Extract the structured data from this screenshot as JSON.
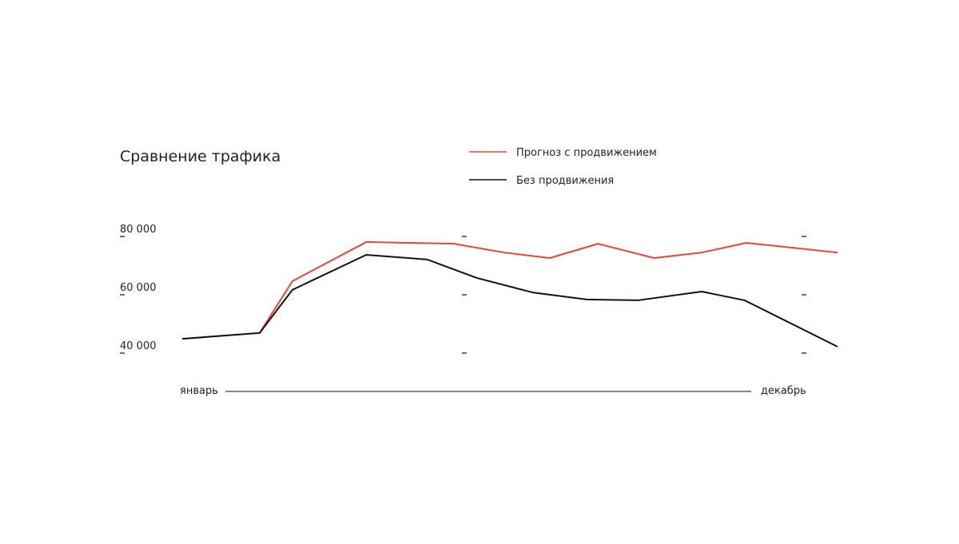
{
  "chart_data": {
    "type": "line",
    "title": "Сравнение трафика",
    "series": [
      {
        "name": "Прогноз с продвижением",
        "color": "#e8453c",
        "x": [
          0,
          1.3,
          1.85,
          3.09,
          4.56,
          5.4,
          6.17,
          6.98,
          7.92,
          8.72,
          9.47,
          11
        ],
        "values": [
          44900,
          46900,
          64700,
          78100,
          77500,
          74500,
          72600,
          77500,
          72600,
          74500,
          77800,
          74500
        ]
      },
      {
        "name": "Без продвижения",
        "color": "#111111",
        "x": [
          0,
          1.3,
          1.85,
          3.09,
          4.11,
          4.94,
          5.88,
          6.79,
          7.65,
          8.72,
          9.44,
          11
        ],
        "values": [
          44900,
          46900,
          61700,
          73700,
          72100,
          65800,
          60800,
          58400,
          58100,
          61100,
          58100,
          42200
        ]
      }
    ],
    "xlim": [
      0,
      11
    ],
    "ylim": [
      40000,
      80000
    ],
    "yticks": [
      {
        "value": 80000,
        "label": "80 000"
      },
      {
        "value": 60000,
        "label": "60 000"
      },
      {
        "value": 40000,
        "label": "40 000"
      }
    ],
    "x_axis_labels": {
      "start": "январь",
      "end": "декабрь"
    }
  }
}
